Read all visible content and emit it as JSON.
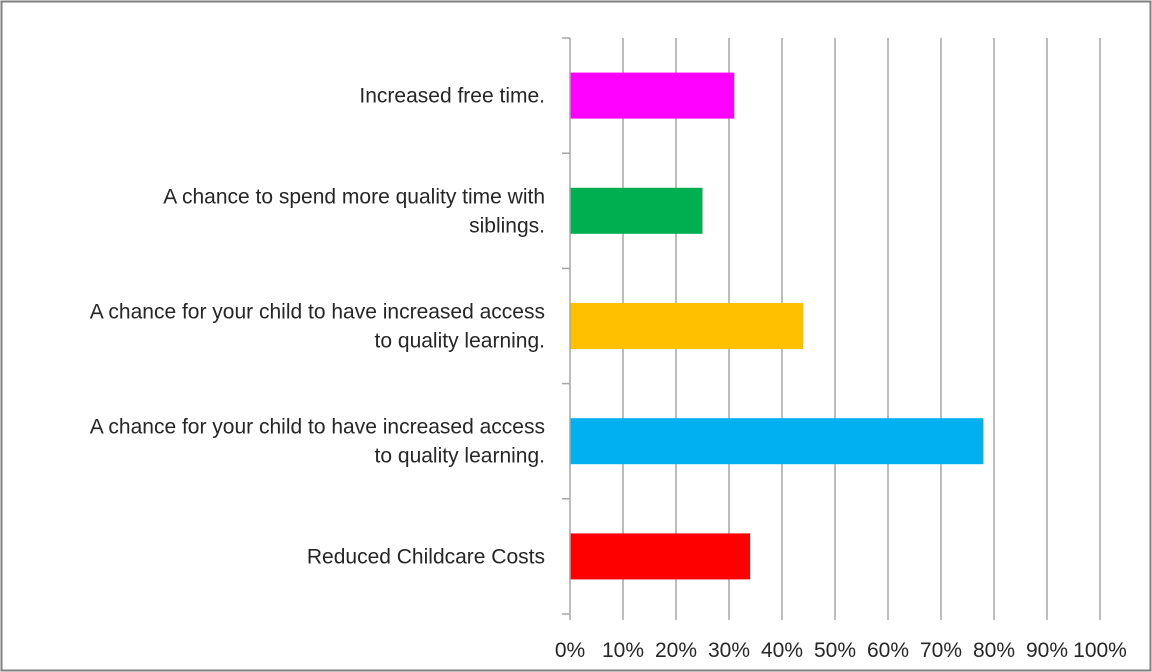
{
  "chart_data": {
    "type": "bar",
    "orientation": "horizontal",
    "title": "",
    "xlabel": "",
    "ylabel": "",
    "xlim": [
      0,
      1.0
    ],
    "categories": [
      "Increased free time.",
      "A chance to spend more quality time with siblings.",
      "A chance for your child to have increased access to quality learning.",
      "A chance for your child to have increased access to quality learning.",
      "Reduced Childcare Costs"
    ],
    "category_lines": [
      [
        "Increased free time."
      ],
      [
        "A chance to spend more quality time with",
        "siblings."
      ],
      [
        "A chance for your child to have increased access",
        "to quality learning."
      ],
      [
        "A chance for your child to have increased access",
        "to quality learning."
      ],
      [
        "Reduced Childcare Costs"
      ]
    ],
    "values": [
      0.31,
      0.25,
      0.44,
      0.78,
      0.34
    ],
    "colors": [
      "#FF00FF",
      "#00B050",
      "#FFC000",
      "#00B0F0",
      "#FF0000"
    ],
    "x_ticks": [
      0,
      0.1,
      0.2,
      0.3,
      0.4,
      0.5,
      0.6,
      0.7,
      0.8,
      0.9,
      1.0
    ],
    "x_tick_labels": [
      "0%",
      "10%",
      "20%",
      "30%",
      "40%",
      "50%",
      "60%",
      "70%",
      "80%",
      "90%",
      "100%"
    ],
    "grid": true,
    "legend": "none",
    "gridline_color": "#A6A6A6",
    "frame_color": "#808080"
  }
}
